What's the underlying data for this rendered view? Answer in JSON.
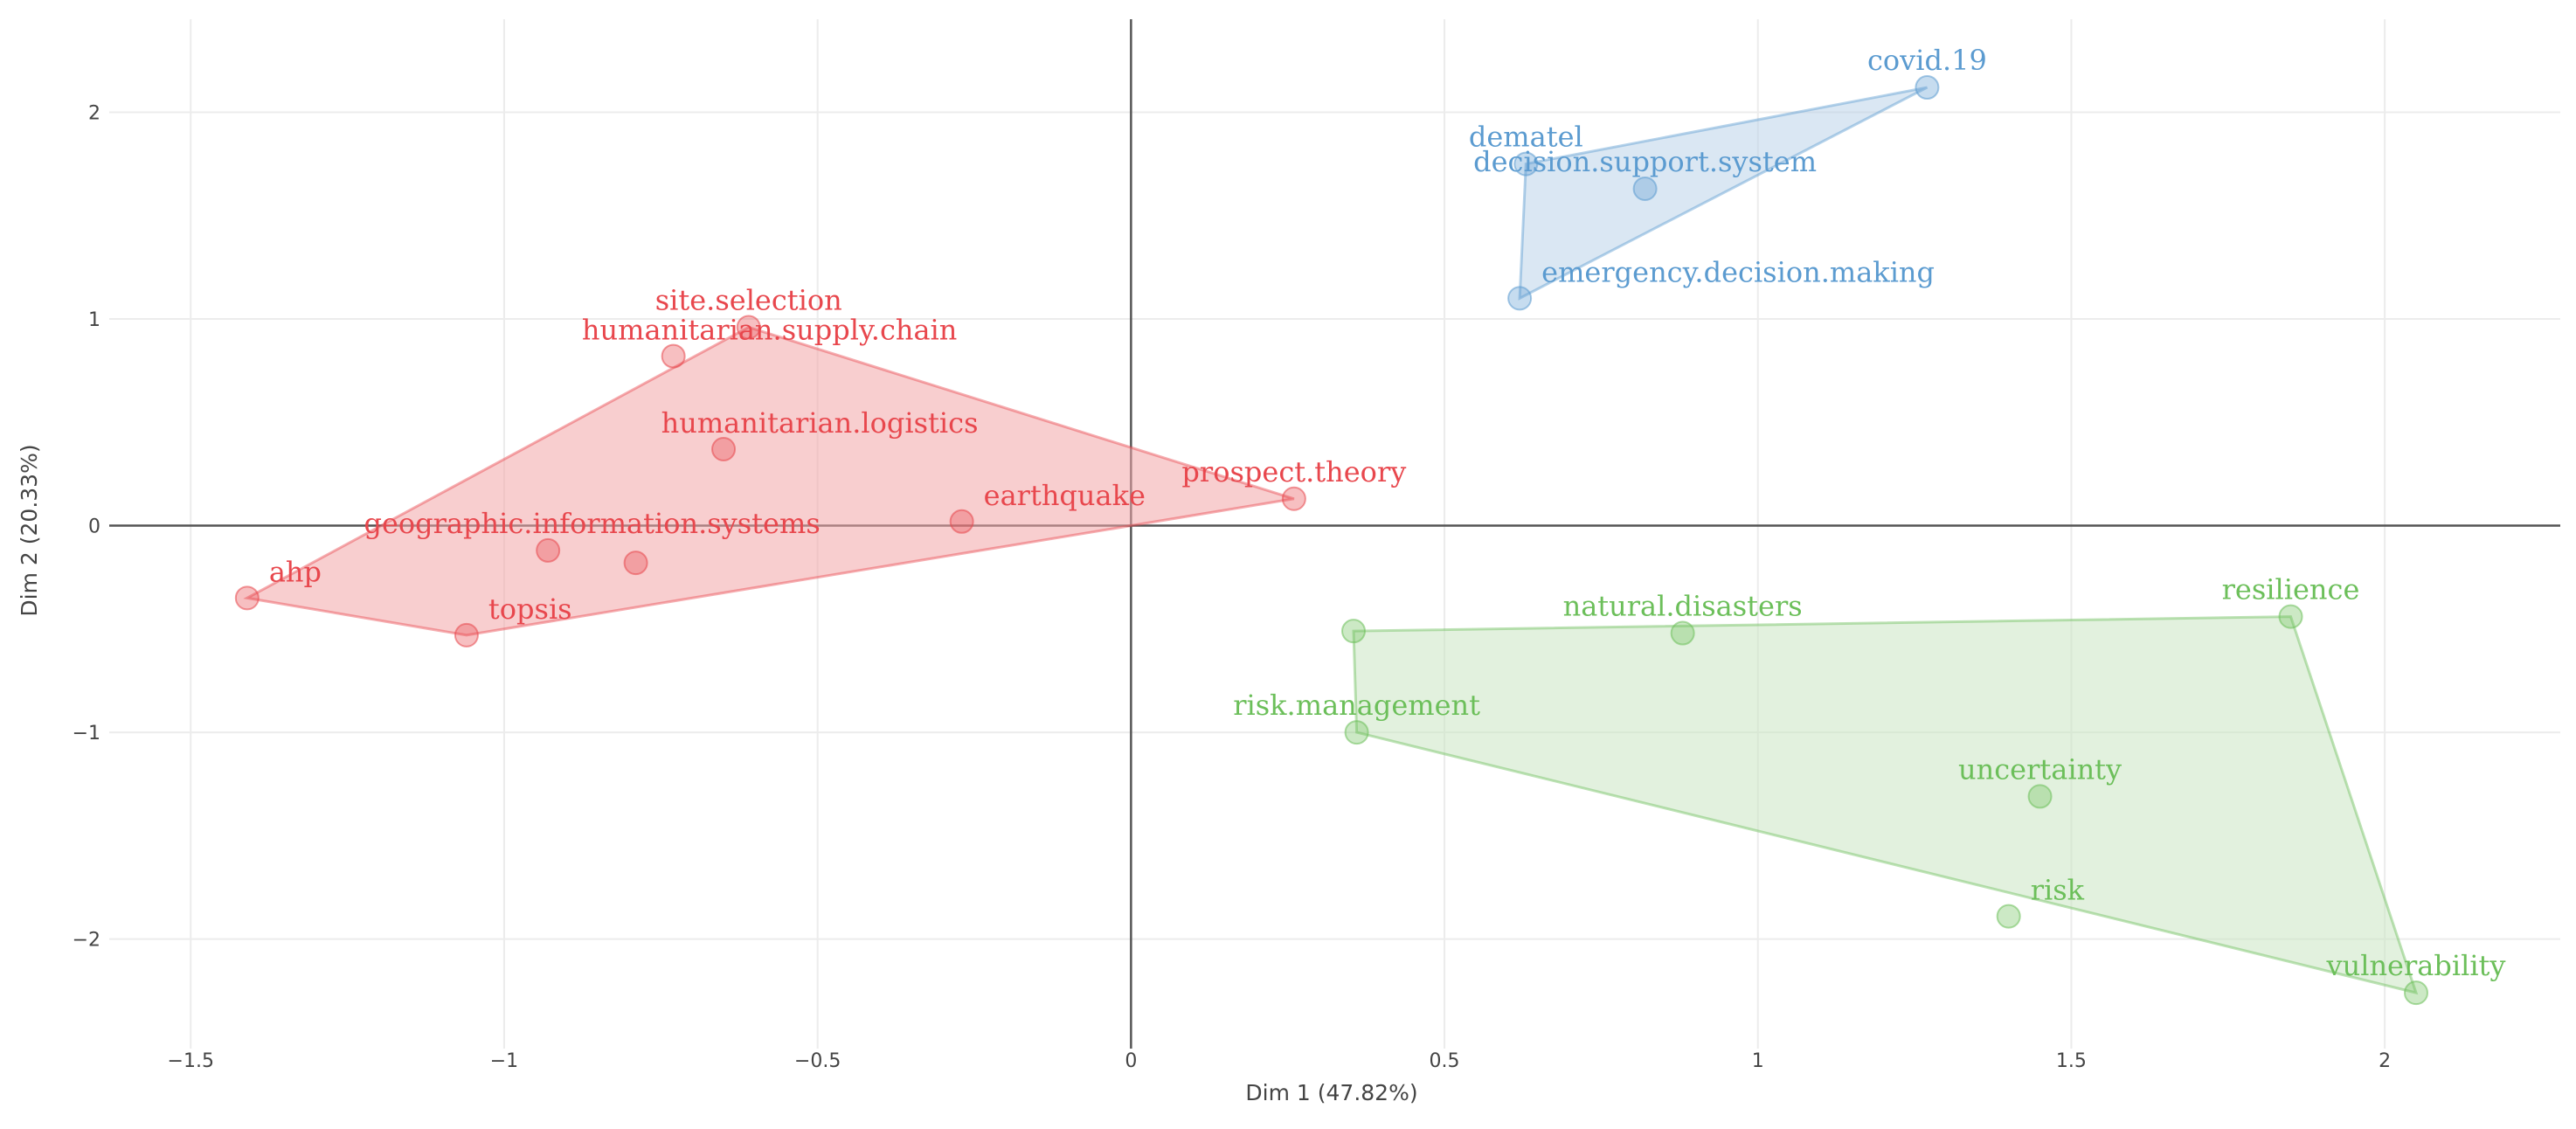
{
  "chart_data": {
    "type": "scatter",
    "xlabel": "Dim 1 (47.82%)",
    "ylabel": "Dim 2 (20.33%)",
    "xlim": [
      -1.63,
      2.28
    ],
    "ylim": [
      -2.53,
      2.45
    ],
    "x_ticks": [
      {
        "value": -1.5,
        "label": "−1.5"
      },
      {
        "value": -1,
        "label": "−1"
      },
      {
        "value": -0.5,
        "label": "−0.5"
      },
      {
        "value": 0,
        "label": "0"
      },
      {
        "value": 0.5,
        "label": "0.5"
      },
      {
        "value": 1,
        "label": "1"
      },
      {
        "value": 1.5,
        "label": "1.5"
      },
      {
        "value": 2,
        "label": "2"
      }
    ],
    "y_ticks": [
      {
        "value": -2,
        "label": "−2"
      },
      {
        "value": -1,
        "label": "−1"
      },
      {
        "value": 0,
        "label": "0"
      },
      {
        "value": 1,
        "label": "1"
      },
      {
        "value": 2,
        "label": "2"
      }
    ],
    "grid": true,
    "clusters": [
      {
        "name": "cluster-1",
        "color": "#e8474d",
        "fill": "#f2a6a8",
        "hull": [
          "ahp",
          "site.selection",
          "prospect.theory",
          "topsis"
        ],
        "points": [
          {
            "label": "ahp",
            "x": -1.41,
            "y": -0.35,
            "label_pos": "above-right"
          },
          {
            "label": "topsis",
            "x": -1.06,
            "y": -0.53,
            "label_pos": "above-right"
          },
          {
            "label": "",
            "x": -0.93,
            "y": -0.12,
            "label_pos": "none"
          },
          {
            "label": "geographic.information.systems",
            "x": -0.79,
            "y": -0.18,
            "label_pos": "above-left"
          },
          {
            "label": "humanitarian.supply.chain",
            "x": -0.73,
            "y": 0.82,
            "label_pos": "above-right-wide"
          },
          {
            "label": "site.selection",
            "x": -0.61,
            "y": 0.96,
            "label_pos": "above"
          },
          {
            "label": "humanitarian.logistics",
            "x": -0.65,
            "y": 0.37,
            "label_pos": "above-right-wide"
          },
          {
            "label": "earthquake",
            "x": -0.27,
            "y": 0.02,
            "label_pos": "above-right"
          },
          {
            "label": "prospect.theory",
            "x": 0.26,
            "y": 0.13,
            "label_pos": "above"
          }
        ]
      },
      {
        "name": "cluster-2",
        "color": "#5b9bd0",
        "fill": "#bcd3ea",
        "hull": [
          "dematel",
          "covid.19",
          "emergency.decision.making"
        ],
        "points": [
          {
            "label": "covid.19",
            "x": 1.27,
            "y": 2.12,
            "label_pos": "above"
          },
          {
            "label": "dematel",
            "x": 0.63,
            "y": 1.75,
            "label_pos": "above"
          },
          {
            "label": "decision.support.system",
            "x": 0.82,
            "y": 1.63,
            "label_pos": "above"
          },
          {
            "label": "emergency.decision.making",
            "x": 0.62,
            "y": 1.1,
            "label_pos": "above-right"
          }
        ]
      },
      {
        "name": "cluster-3",
        "color": "#6cbf5a",
        "fill": "#cbe6c2",
        "hull": [
          "",
          "resilience",
          "vulnerability",
          "risk.management"
        ],
        "points": [
          {
            "label": "",
            "x": 0.355,
            "y": -0.51,
            "label_pos": "none"
          },
          {
            "label": "risk.management",
            "x": 0.36,
            "y": -1.0,
            "label_pos": "above"
          },
          {
            "label": "natural.disasters",
            "x": 0.88,
            "y": -0.52,
            "label_pos": "above"
          },
          {
            "label": "resilience",
            "x": 1.85,
            "y": -0.44,
            "label_pos": "above"
          },
          {
            "label": "uncertainty",
            "x": 1.45,
            "y": -1.31,
            "label_pos": "above"
          },
          {
            "label": "risk",
            "x": 1.4,
            "y": -1.89,
            "label_pos": "above-right"
          },
          {
            "label": "vulnerability",
            "x": 2.05,
            "y": -2.26,
            "label_pos": "above"
          }
        ]
      }
    ]
  }
}
